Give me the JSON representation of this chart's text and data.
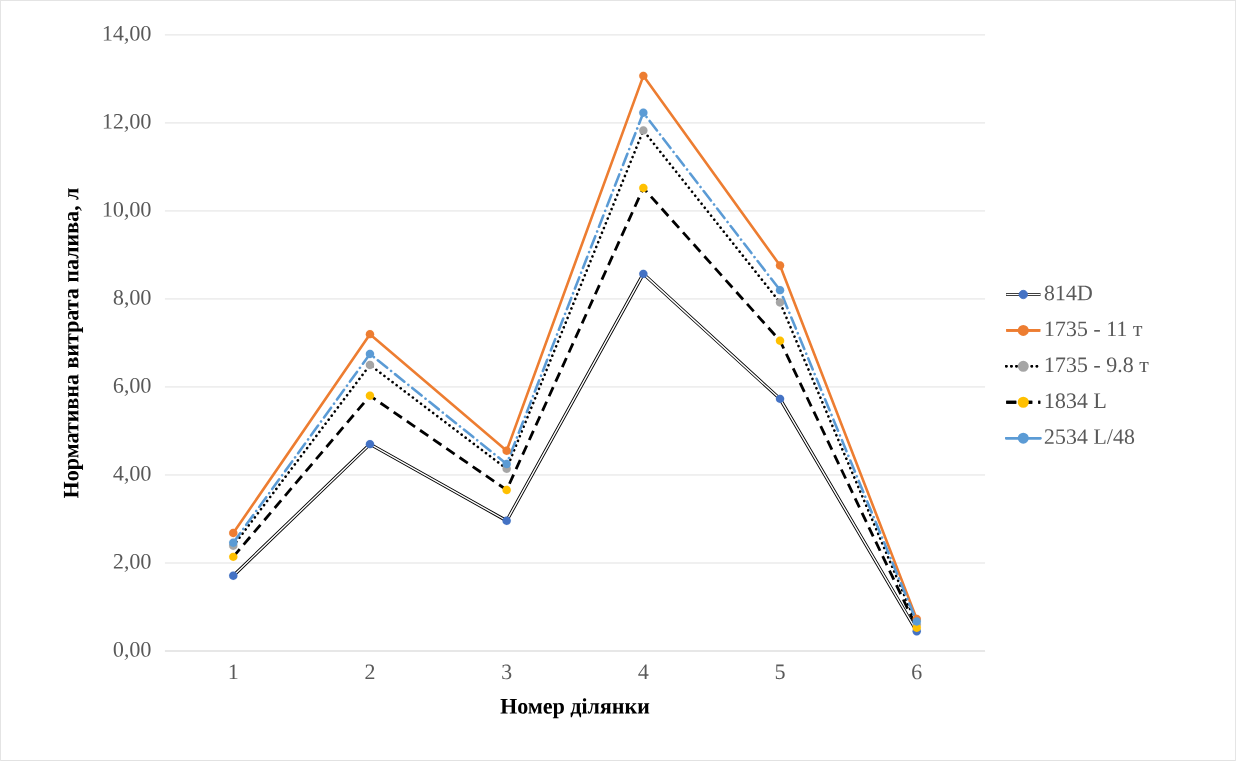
{
  "chart_data": {
    "type": "line",
    "xlabel": "Номер ділянки",
    "ylabel": "Нормативна витрата палива, л",
    "categories": [
      "1",
      "2",
      "3",
      "4",
      "5",
      "6"
    ],
    "ylim": [
      0,
      14
    ],
    "yticks": [
      {
        "value": 0,
        "label": "0,00"
      },
      {
        "value": 2,
        "label": "2,00"
      },
      {
        "value": 4,
        "label": "4,00"
      },
      {
        "value": 6,
        "label": "6,00"
      },
      {
        "value": 8,
        "label": "8,00"
      },
      {
        "value": 10,
        "label": "10,00"
      },
      {
        "value": 12,
        "label": "12,00"
      },
      {
        "value": 14,
        "label": "14,00"
      }
    ],
    "grid": "y",
    "legend": "right",
    "marker": "circle",
    "series": [
      {
        "name": "814D",
        "color": "#000000",
        "colors": [
          "#4472c4",
          "#4472c4",
          "#4472c4",
          "#4472c4",
          "#4472c4",
          "#4472c4"
        ],
        "line_style": "solid",
        "values": [
          1.71,
          4.7,
          2.96,
          8.57,
          5.73,
          0.45
        ]
      },
      {
        "name": "1735 - 11 т",
        "color": "#ed7d31",
        "line_style": "solid",
        "values": [
          2.68,
          7.2,
          4.55,
          13.07,
          8.76,
          0.73
        ]
      },
      {
        "name": "1735 - 9.8 т",
        "color": "#000000",
        "colors": [
          "#a5a5a5",
          "#a5a5a5",
          "#a5a5a5",
          "#a5a5a5",
          "#a5a5a5",
          "#a5a5a5"
        ],
        "line_style": "dotted",
        "values": [
          2.39,
          6.5,
          4.14,
          11.83,
          7.92,
          0.6
        ]
      },
      {
        "name": "1834 L",
        "color": "#000000",
        "colors": [
          "#ffc000",
          "#ffc000",
          "#ffc000",
          "#ffc000",
          "#ffc000",
          "#ffc000"
        ],
        "line_style": "dashed",
        "values": [
          2.14,
          5.8,
          3.66,
          10.52,
          7.05,
          0.53
        ]
      },
      {
        "name": "2534 L/48",
        "color": "#5b9bd5",
        "line_style": "dashdot",
        "values": [
          2.46,
          6.75,
          4.25,
          12.23,
          8.2,
          0.67
        ]
      }
    ]
  }
}
